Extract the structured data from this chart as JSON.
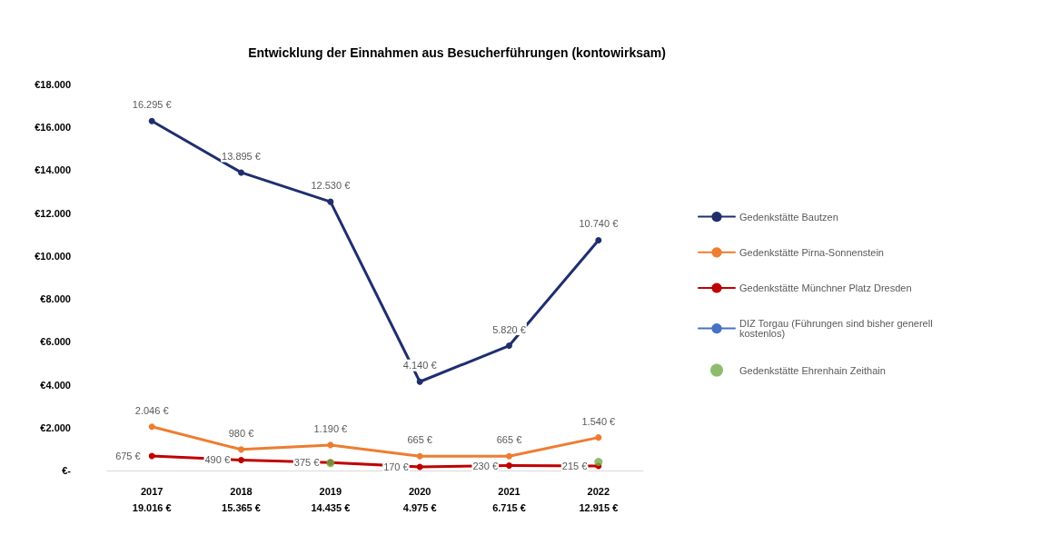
{
  "chart_data": {
    "type": "line",
    "title": "Entwicklung der Einnahmen aus Besucherführungen (kontowirksam)",
    "categories": [
      "2017\n19.016 €",
      "2018\n15.365 €",
      "2019\n14.435 €",
      "2020\n4.975 €",
      "2021\n6.715 €",
      "2022\n12.915 €"
    ],
    "ylim": [
      0,
      18000
    ],
    "yticks": [
      {
        "value": 0,
        "label": "€-"
      },
      {
        "value": 2000,
        "label": "€2.000"
      },
      {
        "value": 4000,
        "label": "€4.000"
      },
      {
        "value": 6000,
        "label": "€6.000"
      },
      {
        "value": 8000,
        "label": "€8.000"
      },
      {
        "value": 10000,
        "label": "€10.000"
      },
      {
        "value": 12000,
        "label": "€12.000"
      },
      {
        "value": 14000,
        "label": "€14.000"
      },
      {
        "value": 16000,
        "label": "€16.000"
      },
      {
        "value": 18000,
        "label": "€18.000"
      }
    ],
    "series": [
      {
        "name": "Gedenkstätte Bautzen",
        "color": "#1f2f6e",
        "values": [
          16295,
          13895,
          12530,
          4140,
          5820,
          10740
        ],
        "value_labels": [
          "16.295 €",
          "13.895 €",
          "12.530 €",
          "4.140 €",
          "5.820 €",
          "10.740 €"
        ]
      },
      {
        "name": "Gedenkstätte Pirna-Sonnenstein",
        "color": "#ed7d31",
        "values": [
          2046,
          980,
          1190,
          665,
          665,
          1540
        ],
        "value_labels": [
          "2.046 €",
          "980 €",
          "1.190 €",
          "665 €",
          "665 €",
          "1.540 €"
        ]
      },
      {
        "name": "Gedenkstätte Münchner Platz Dresden",
        "color": "#c00000",
        "values": [
          675,
          490,
          375,
          170,
          230,
          215
        ],
        "value_labels": [
          "675 €",
          "490 €",
          "375 €",
          "170 €",
          "230 €",
          "215 €"
        ]
      },
      {
        "name": "DIZ Torgau (Führungen sind bisher generell kostenlos)",
        "color": "#4472c4",
        "values": [
          null,
          null,
          null,
          null,
          null,
          null
        ]
      },
      {
        "name": "Gedenkstätte Ehrenhain Zeithain",
        "type": "scatter",
        "color": "#70ad47",
        "values": [
          null,
          null,
          350,
          null,
          null,
          400
        ]
      }
    ],
    "legend": "right",
    "marker": "circle",
    "line_style": "solid",
    "grid": false
  }
}
